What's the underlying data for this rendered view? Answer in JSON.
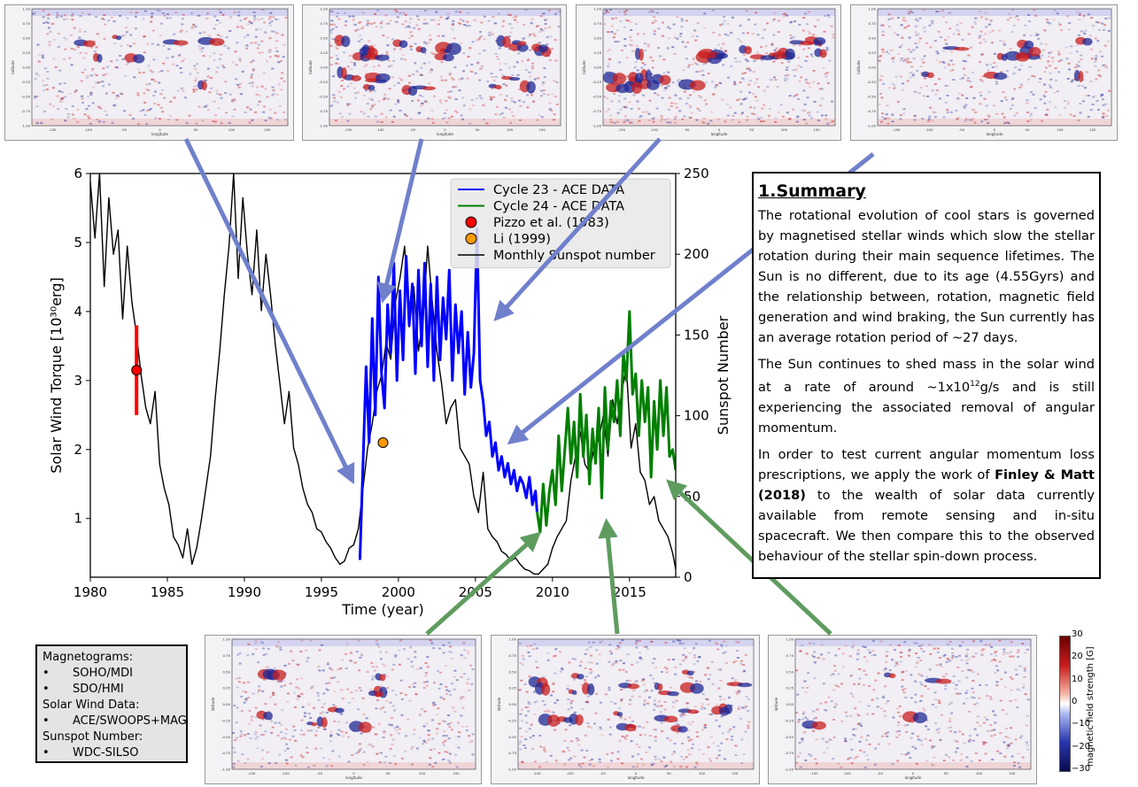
{
  "chart_data": {
    "type": "line",
    "xlabel": "Time (year)",
    "ylabel_left": "Solar Wind Torque [10³⁰erg]",
    "ylabel_right": "Sunspot Number",
    "xlim": [
      1980,
      2018
    ],
    "ylim_left": [
      0.15,
      6
    ],
    "ylim_right": [
      0,
      250
    ],
    "x_ticks": [
      1980,
      1985,
      1990,
      1995,
      2000,
      2005,
      2010,
      2015
    ],
    "y_ticks_left": [
      1,
      2,
      3,
      4,
      5,
      6
    ],
    "y_ticks_right": [
      0,
      50,
      100,
      150,
      200,
      250
    ],
    "legend_position": "top-right",
    "legend": [
      {
        "label": "Cycle 23 - ACE DATA",
        "kind": "line",
        "color": "#0000ff"
      },
      {
        "label": "Cycle 24 - ACE DATA",
        "kind": "line",
        "color": "#007f00"
      },
      {
        "label": "Pizzo et al. (1983)",
        "kind": "marker",
        "color": "#ff0000"
      },
      {
        "label": "Li (1999)",
        "kind": "marker",
        "color": "#ff9900"
      },
      {
        "label": "Monthly Sunspot number",
        "kind": "line",
        "color": "#000000"
      }
    ],
    "series": [
      {
        "name": "Monthly Sunspot number",
        "axis": "right",
        "color": "#000000",
        "x": [
          1980.0,
          1980.3,
          1980.6,
          1980.9,
          1981.2,
          1981.5,
          1981.8,
          1982.1,
          1982.4,
          1982.7,
          1983.0,
          1983.3,
          1983.6,
          1983.9,
          1984.2,
          1984.5,
          1984.8,
          1985.1,
          1985.4,
          1985.7,
          1986.0,
          1986.3,
          1986.6,
          1986.9,
          1987.2,
          1987.5,
          1987.8,
          1988.1,
          1988.4,
          1988.7,
          1989.0,
          1989.3,
          1989.6,
          1989.9,
          1990.2,
          1990.5,
          1990.8,
          1991.1,
          1991.4,
          1991.7,
          1992.0,
          1992.3,
          1992.6,
          1992.9,
          1993.2,
          1993.5,
          1993.8,
          1994.1,
          1994.4,
          1994.7,
          1995.0,
          1995.3,
          1995.6,
          1995.9,
          1996.2,
          1996.5,
          1996.8,
          1997.1,
          1997.4,
          1997.7,
          1998.0,
          1998.3,
          1998.6,
          1998.9,
          1999.2,
          1999.5,
          1999.8,
          2000.1,
          2000.4,
          2000.7,
          2001.0,
          2001.3,
          2001.6,
          2001.9,
          2002.2,
          2002.5,
          2002.8,
          2003.1,
          2003.4,
          2003.7,
          2004.0,
          2004.3,
          2004.6,
          2004.9,
          2005.2,
          2005.5,
          2005.8,
          2006.1,
          2006.4,
          2006.7,
          2007.0,
          2007.3,
          2007.6,
          2007.9,
          2008.2,
          2008.5,
          2008.8,
          2009.1,
          2009.4,
          2009.7,
          2010.0,
          2010.3,
          2010.6,
          2010.9,
          2011.2,
          2011.5,
          2011.8,
          2012.1,
          2012.4,
          2012.7,
          2013.0,
          2013.3,
          2013.6,
          2013.9,
          2014.2,
          2014.5,
          2014.8,
          2015.1,
          2015.4,
          2015.7,
          2016.0,
          2016.3,
          2016.6,
          2016.9,
          2017.2,
          2017.5,
          2017.8,
          2018.0
        ],
        "values": [
          245,
          210,
          250,
          180,
          235,
          200,
          215,
          160,
          205,
          170,
          150,
          125,
          105,
          95,
          115,
          70,
          55,
          45,
          25,
          20,
          12,
          30,
          8,
          18,
          35,
          55,
          75,
          110,
          140,
          175,
          205,
          250,
          185,
          235,
          200,
          175,
          215,
          165,
          200,
          175,
          145,
          120,
          95,
          115,
          80,
          70,
          55,
          45,
          40,
          30,
          28,
          22,
          18,
          12,
          8,
          10,
          18,
          20,
          30,
          55,
          80,
          95,
          115,
          125,
          145,
          135,
          170,
          185,
          205,
          155,
          180,
          140,
          160,
          205,
          170,
          140,
          120,
          95,
          105,
          110,
          80,
          75,
          70,
          50,
          40,
          65,
          30,
          25,
          22,
          16,
          14,
          10,
          12,
          8,
          5,
          4,
          2,
          2,
          5,
          8,
          18,
          25,
          30,
          35,
          60,
          75,
          90,
          70,
          65,
          80,
          85,
          100,
          75,
          110,
          95,
          115,
          130,
          80,
          95,
          65,
          60,
          45,
          50,
          35,
          30,
          25,
          15,
          5
        ]
      },
      {
        "name": "Cycle 23 - ACE DATA",
        "axis": "left",
        "color": "#0000ff",
        "x": [
          1997.5,
          1997.7,
          1997.9,
          1998.1,
          1998.3,
          1998.5,
          1998.7,
          1998.9,
          1999.1,
          1999.3,
          1999.5,
          1999.7,
          1999.9,
          2000.1,
          2000.3,
          2000.5,
          2000.7,
          2000.9,
          2001.1,
          2001.3,
          2001.5,
          2001.7,
          2001.9,
          2002.1,
          2002.3,
          2002.5,
          2002.7,
          2002.9,
          2003.1,
          2003.3,
          2003.5,
          2003.7,
          2003.9,
          2004.1,
          2004.3,
          2004.5,
          2004.7,
          2004.9,
          2005.1,
          2005.3,
          2005.5,
          2005.7,
          2005.9,
          2006.1,
          2006.3,
          2006.5,
          2006.7,
          2006.9,
          2007.1,
          2007.3,
          2007.5,
          2007.7,
          2007.9,
          2008.1,
          2008.3,
          2008.5,
          2008.7,
          2008.9,
          2009.0
        ],
        "values": [
          0.4,
          1.8,
          3.2,
          2.1,
          3.9,
          2.5,
          4.5,
          3.1,
          2.6,
          4.1,
          3.4,
          4.7,
          3.0,
          4.3,
          3.3,
          4.8,
          3.8,
          4.4,
          3.1,
          4.6,
          3.5,
          4.7,
          3.2,
          4.4,
          3.0,
          4.5,
          3.3,
          4.2,
          3.6,
          4.6,
          3.0,
          4.1,
          3.4,
          4.0,
          2.8,
          3.7,
          2.9,
          3.4,
          5.2,
          3.0,
          2.7,
          2.2,
          2.4,
          1.9,
          2.1,
          1.7,
          1.9,
          1.6,
          1.8,
          1.5,
          1.7,
          1.4,
          1.6,
          1.5,
          1.3,
          1.6,
          1.2,
          1.4,
          1.1
        ]
      },
      {
        "name": "Cycle 24 - ACE DATA",
        "axis": "left",
        "color": "#007f00",
        "x": [
          2009.0,
          2009.2,
          2009.4,
          2009.6,
          2009.8,
          2010.0,
          2010.2,
          2010.4,
          2010.6,
          2010.8,
          2011.0,
          2011.2,
          2011.4,
          2011.6,
          2011.8,
          2012.0,
          2012.2,
          2012.4,
          2012.6,
          2012.8,
          2013.0,
          2013.2,
          2013.4,
          2013.6,
          2013.8,
          2014.0,
          2014.2,
          2014.4,
          2014.6,
          2014.8,
          2015.0,
          2015.2,
          2015.4,
          2015.6,
          2015.8,
          2016.0,
          2016.2,
          2016.4,
          2016.6,
          2016.8,
          2017.0,
          2017.2,
          2017.4,
          2017.6,
          2017.8,
          2018.0
        ],
        "values": [
          1.1,
          0.8,
          1.5,
          0.9,
          1.4,
          1.7,
          1.2,
          2.2,
          1.4,
          2.0,
          2.6,
          1.8,
          2.4,
          1.6,
          2.8,
          1.9,
          2.5,
          1.5,
          2.3,
          1.8,
          2.6,
          1.3,
          2.9,
          2.0,
          2.7,
          2.4,
          3.0,
          2.2,
          3.4,
          3.0,
          4.0,
          2.8,
          3.1,
          2.2,
          3.0,
          2.4,
          2.9,
          1.6,
          2.7,
          2.0,
          3.0,
          2.2,
          2.9,
          1.9,
          2.0,
          1.7
        ]
      }
    ],
    "points": [
      {
        "name": "Pizzo et al. (1983)",
        "x": 1983.0,
        "y": 3.15,
        "error": [
          2.5,
          3.8
        ],
        "color": "#ff0000"
      },
      {
        "name": "Li (1999)",
        "x": 1999.0,
        "y": 2.1,
        "color": "#ff9900"
      }
    ]
  },
  "summary": {
    "title": "1.Summary",
    "p1": "The rotational evolution of cool stars is governed by magnetised stellar winds which slow the stellar rotation during their main sequence lifetimes. The Sun is no different, due to its age (4.55Gyrs) and the relationship between, rotation, magnetic field generation and wind braking, the Sun currently has an average rotation period of ~27 days.",
    "p2_a": "The Sun continues to shed mass in the solar wind at a rate of around ~1x10",
    "p2_sup": "12",
    "p2_b": "g/s and is still experiencing the associated removal of angular momentum.",
    "p3_a": "In order to test current angular momentum loss prescriptions, we apply the work of ",
    "p3_bold": "Finley & Matt (2018)",
    "p3_b": " to the wealth of solar data currently available from remote sensing and in-situ spacecraft. We then compare this to the observed behaviour of the stellar spin-down process."
  },
  "sources": {
    "magnetograms_heading": "Magnetograms:",
    "magnetogram_items": [
      "SOHO/MDI",
      "SDO/HMI"
    ],
    "wind_heading": "Solar Wind Data:",
    "wind_items": [
      "ACE/SWOOPS+MAG"
    ],
    "sunspot_heading": "Sunspot Number:",
    "sunspot_items": [
      "WDC-SILSO"
    ],
    "bullet": "•"
  },
  "colorbar": {
    "label": "magnetic field strength [G]",
    "ticks": [
      "30",
      "20",
      "10",
      "0",
      "−10",
      "−20",
      "−30"
    ]
  },
  "map_axes": {
    "xlabel": "longitude",
    "ylabel": "latitude",
    "y_ticks": [
      "1.00",
      "0.75",
      "0.50",
      "0.25",
      "0.00",
      "-0.25",
      "-0.50",
      "-0.75",
      "-1.00"
    ],
    "x_ticks": [
      "-150",
      "-100",
      "-50",
      "0",
      "50",
      "100",
      "150"
    ]
  },
  "colors": {
    "arrow_blue": "#7080cc",
    "arrow_green": "#5e9c5e",
    "map_positive": "#c81e1e",
    "map_negative": "#1e2896"
  }
}
